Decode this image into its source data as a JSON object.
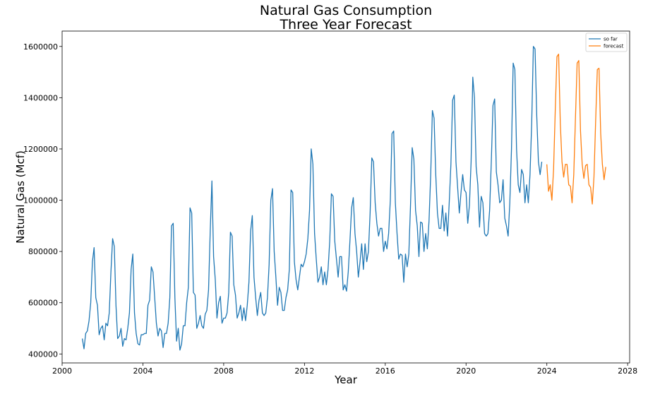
{
  "chart_data": {
    "type": "line",
    "title": "Natural Gas Consumption",
    "subtitle": "Three Year Forecast",
    "xlabel": "Year",
    "ylabel": "Natural Gas (Mcf)",
    "xlim": [
      2000.0,
      2028.1
    ],
    "ylim": [
      365000,
      1660000
    ],
    "xticks": [
      2000,
      2004,
      2008,
      2012,
      2016,
      2020,
      2024,
      2028
    ],
    "yticks": [
      400000,
      600000,
      800000,
      1000000,
      1200000,
      1400000,
      1600000
    ],
    "grid": false,
    "legend_position": "top-right",
    "colors": {
      "so_far": "#1f77b4",
      "forecast": "#ff7f0e"
    },
    "series": [
      {
        "name": "so far",
        "x_start": "2001-01",
        "interval": "monthly",
        "values": [
          460000,
          420000,
          480000,
          490000,
          530000,
          600000,
          760000,
          815000,
          620000,
          590000,
          475000,
          500000,
          510000,
          455000,
          520000,
          510000,
          560000,
          720000,
          850000,
          820000,
          590000,
          460000,
          470000,
          500000,
          430000,
          460000,
          455000,
          500000,
          560000,
          730000,
          790000,
          560000,
          480000,
          440000,
          435000,
          475000,
          475000,
          480000,
          480000,
          590000,
          610000,
          740000,
          720000,
          620000,
          520000,
          470000,
          500000,
          490000,
          425000,
          480000,
          480000,
          520000,
          620000,
          900000,
          910000,
          620000,
          450000,
          500000,
          415000,
          440000,
          510000,
          510000,
          600000,
          660000,
          970000,
          950000,
          640000,
          630000,
          500000,
          520000,
          550000,
          510000,
          500000,
          555000,
          570000,
          650000,
          880000,
          1075000,
          780000,
          690000,
          540000,
          600000,
          625000,
          520000,
          540000,
          540000,
          560000,
          640000,
          875000,
          860000,
          670000,
          630000,
          540000,
          560000,
          590000,
          530000,
          580000,
          530000,
          590000,
          680000,
          880000,
          940000,
          700000,
          620000,
          550000,
          610000,
          640000,
          560000,
          550000,
          560000,
          620000,
          750000,
          1000000,
          1045000,
          800000,
          700000,
          590000,
          660000,
          640000,
          570000,
          570000,
          620000,
          650000,
          730000,
          1040000,
          1030000,
          760000,
          690000,
          650000,
          700000,
          750000,
          740000,
          760000,
          790000,
          850000,
          960000,
          1200000,
          1140000,
          870000,
          770000,
          680000,
          700000,
          740000,
          670000,
          720000,
          670000,
          730000,
          840000,
          1025000,
          1015000,
          840000,
          770000,
          700000,
          780000,
          780000,
          650000,
          670000,
          645000,
          720000,
          840000,
          970000,
          1010000,
          870000,
          800000,
          700000,
          760000,
          830000,
          730000,
          830000,
          760000,
          800000,
          950000,
          1165000,
          1150000,
          990000,
          910000,
          860000,
          890000,
          890000,
          800000,
          840000,
          810000,
          870000,
          1000000,
          1260000,
          1270000,
          990000,
          870000,
          770000,
          790000,
          785000,
          680000,
          790000,
          740000,
          790000,
          980000,
          1205000,
          1160000,
          960000,
          900000,
          780000,
          915000,
          910000,
          800000,
          870000,
          810000,
          920000,
          1100000,
          1350000,
          1320000,
          1100000,
          950000,
          890000,
          890000,
          980000,
          880000,
          950000,
          860000,
          990000,
          1140000,
          1390000,
          1410000,
          1150000,
          1050000,
          950000,
          1030000,
          1100000,
          1040000,
          1030000,
          910000,
          980000,
          1150000,
          1480000,
          1400000,
          1130000,
          1060000,
          895000,
          1015000,
          990000,
          870000,
          860000,
          870000,
          960000,
          1150000,
          1370000,
          1395000,
          1110000,
          1060000,
          990000,
          1000000,
          1080000,
          930000,
          900000,
          860000,
          990000,
          1200000,
          1535000,
          1510000,
          1200000,
          1060000,
          1030000,
          1120000,
          1100000,
          990000,
          1060000,
          990000,
          1100000,
          1300000,
          1600000,
          1590000,
          1330000,
          1150000,
          1100000,
          1150000
        ]
      },
      {
        "name": "forecast",
        "x_start": "2024-01",
        "interval": "monthly",
        "values": [
          1140000,
          1035000,
          1060000,
          1000000,
          1120000,
          1350000,
          1560000,
          1570000,
          1300000,
          1150000,
          1090000,
          1140000,
          1140000,
          1060000,
          1055000,
          990000,
          1100000,
          1320000,
          1535000,
          1545000,
          1270000,
          1140000,
          1085000,
          1135000,
          1140000,
          1060000,
          1050000,
          985000,
          1090000,
          1310000,
          1510000,
          1515000,
          1260000,
          1140000,
          1080000,
          1130000
        ]
      }
    ]
  }
}
